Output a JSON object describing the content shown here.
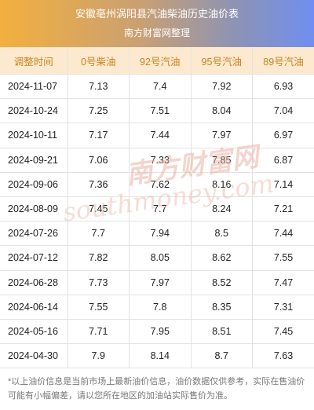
{
  "header": {
    "title": "安徽亳州涡阳县汽油柴油历史油价表",
    "subtitle": "南方财富网整理"
  },
  "table": {
    "columns": [
      "调整时间",
      "0号柴油",
      "92号汽油",
      "95号汽油",
      "89号汽油"
    ],
    "rows": [
      [
        "2024-11-07",
        "7.13",
        "7.4",
        "7.92",
        "6.93"
      ],
      [
        "2024-10-24",
        "7.25",
        "7.51",
        "8.04",
        "7.04"
      ],
      [
        "2024-10-11",
        "7.17",
        "7.44",
        "7.97",
        "6.97"
      ],
      [
        "2024-09-21",
        "7.06",
        "7.33",
        "7.85",
        "6.87"
      ],
      [
        "2024-09-06",
        "7.36",
        "7.62",
        "8.16",
        "7.14"
      ],
      [
        "2024-08-09",
        "7.45",
        "7.7",
        "8.24",
        "7.21"
      ],
      [
        "2024-07-26",
        "7.7",
        "7.94",
        "8.5",
        "7.44"
      ],
      [
        "2024-07-12",
        "7.82",
        "8.05",
        "8.62",
        "7.55"
      ],
      [
        "2024-06-28",
        "7.73",
        "7.97",
        "8.52",
        "7.47"
      ],
      [
        "2024-06-14",
        "7.55",
        "7.8",
        "8.35",
        "7.31"
      ],
      [
        "2024-05-16",
        "7.71",
        "7.95",
        "8.51",
        "7.45"
      ],
      [
        "2024-04-30",
        "7.9",
        "8.14",
        "8.7",
        "7.63"
      ]
    ]
  },
  "watermark": {
    "cn": "南方财富网",
    "en": "southmoney.com",
    "color": "#e9b3a4"
  },
  "note": "*以上油价信息是当前市场上最新油价信息，油价数据仅供参考，实际在售油价可能有小幅偏差，请以您所在地区的加油站实际售价为准。",
  "colors": {
    "header_start": "#f3b03e",
    "header_end": "#6f8ff0",
    "thead_bg": "#fce9cf",
    "thead_text": "#c8831f"
  }
}
